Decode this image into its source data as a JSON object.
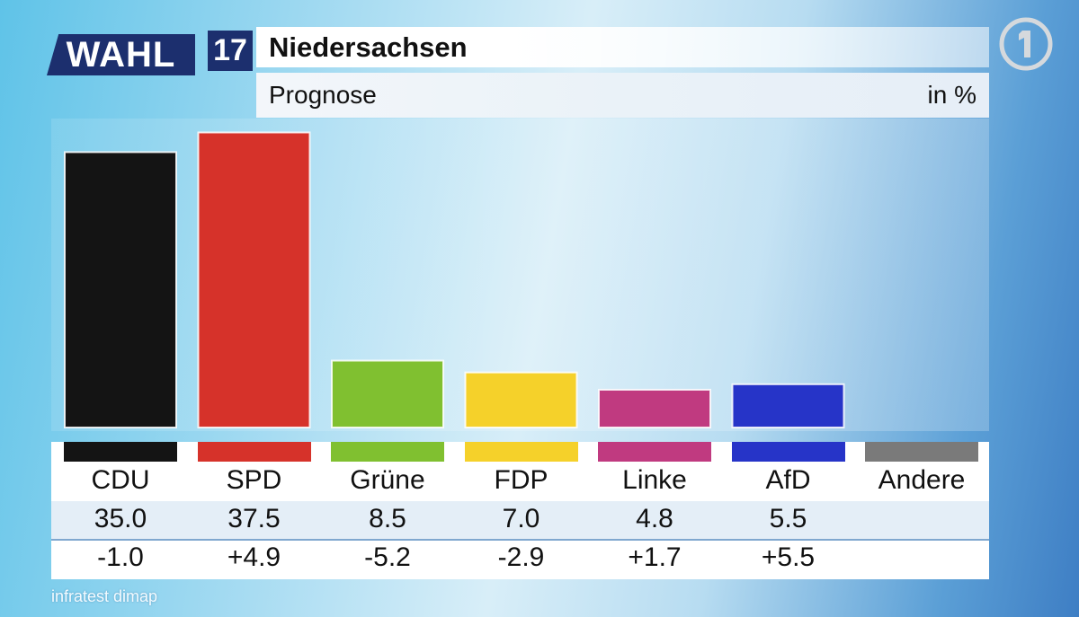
{
  "header": {
    "logo_text": "WAHL",
    "logo_number": "17",
    "title": "Niedersachsen",
    "subtitle": "Prognose",
    "unit": "in %"
  },
  "broadcaster": {
    "icon": "ard-one-logo-icon"
  },
  "source": "infratest dimap",
  "colors": {
    "logo_blue": "#1c2f6e",
    "CDU": "#141414",
    "SPD": "#d6322a",
    "Grüne": "#80c030",
    "FDP": "#f5d12a",
    "Linke": "#c03a80",
    "AfD": "#2634c8",
    "Andere": "#7a7a7a"
  },
  "chart_data": {
    "type": "bar",
    "title": "Niedersachsen",
    "subtitle": "Prognose",
    "ylabel": "in %",
    "categories": [
      "CDU",
      "SPD",
      "Grüne",
      "FDP",
      "Linke",
      "AfD",
      "Andere"
    ],
    "values": [
      35.0,
      37.5,
      8.5,
      7.0,
      4.8,
      5.5,
      null
    ],
    "value_labels": [
      "35.0",
      "37.5",
      "8.5",
      "7.0",
      "4.8",
      "5.5",
      ""
    ],
    "change_labels": [
      "-1.0",
      "+4.9",
      "-5.2",
      "-2.9",
      "+1.7",
      "+5.5",
      ""
    ],
    "bar_colors": [
      "#141414",
      "#d6322a",
      "#80c030",
      "#f5d12a",
      "#c03a80",
      "#2634c8",
      "#7a7a7a"
    ],
    "ylim": [
      0,
      40
    ],
    "grid": false,
    "legend": "none"
  }
}
